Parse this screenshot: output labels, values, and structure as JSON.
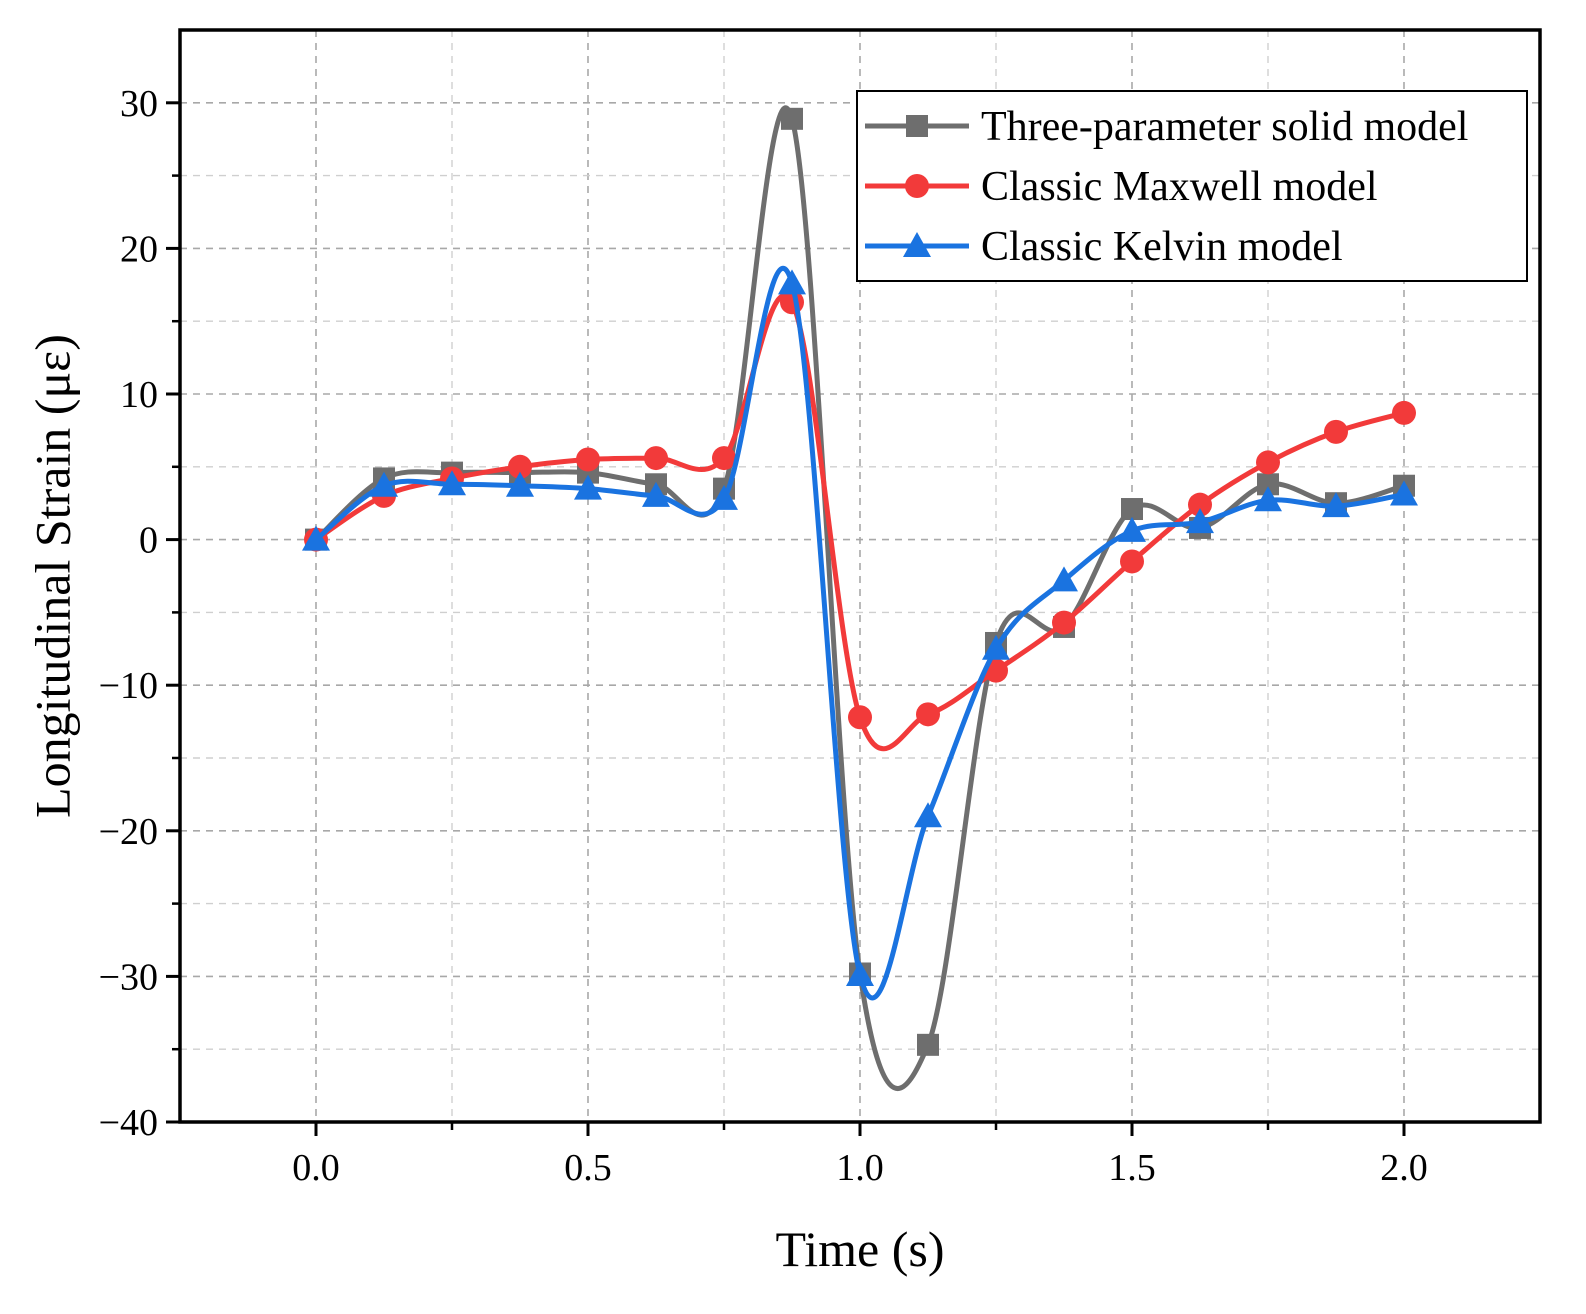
{
  "chart_data": {
    "type": "line",
    "title": "",
    "xlabel": "Time (s)",
    "ylabel": "Longitudinal Strain (με)",
    "xlim": [
      -0.25,
      2.25
    ],
    "ylim": [
      -40,
      35
    ],
    "xticks": [
      0.0,
      0.5,
      1.0,
      1.5,
      2.0
    ],
    "xtick_labels": [
      "0.0",
      "0.5",
      "1.0",
      "1.5",
      "2.0"
    ],
    "yticks": [
      -40,
      -30,
      -20,
      -10,
      0,
      10,
      20,
      30
    ],
    "ytick_labels": [
      "−40",
      "−30",
      "−20",
      "−10",
      "0",
      "10",
      "20",
      "30"
    ],
    "grid": true,
    "legend_position": "top-right",
    "x": [
      0,
      0.125,
      0.25,
      0.375,
      0.5,
      0.625,
      0.75,
      0.875,
      1.0,
      1.125,
      1.25,
      1.375,
      1.5,
      1.625,
      1.75,
      1.875,
      2.0
    ],
    "series": [
      {
        "name": "Three-parameter solid model",
        "color": "#6e6e6e",
        "marker": "square",
        "values": [
          0,
          4.2,
          4.6,
          4.6,
          4.6,
          3.8,
          3.5,
          28.9,
          -29.8,
          -34.7,
          -7.1,
          -6.0,
          2.1,
          0.8,
          3.8,
          2.5,
          3.7
        ]
      },
      {
        "name": "Classic Maxwell model",
        "color": "#f23a3a",
        "marker": "circle",
        "values": [
          0,
          3.0,
          4.2,
          5.0,
          5.5,
          5.6,
          5.6,
          16.3,
          -12.2,
          -12.0,
          -9.0,
          -5.7,
          -1.5,
          2.4,
          5.3,
          7.4,
          8.7
        ]
      },
      {
        "name": "Classic Kelvin model",
        "color": "#1a73e0",
        "marker": "triangle",
        "values": [
          0,
          3.7,
          3.8,
          3.7,
          3.5,
          3.0,
          2.8,
          17.6,
          -29.9,
          -19.0,
          -7.5,
          -2.8,
          0.6,
          1.2,
          2.7,
          2.3,
          3.1
        ]
      }
    ]
  }
}
